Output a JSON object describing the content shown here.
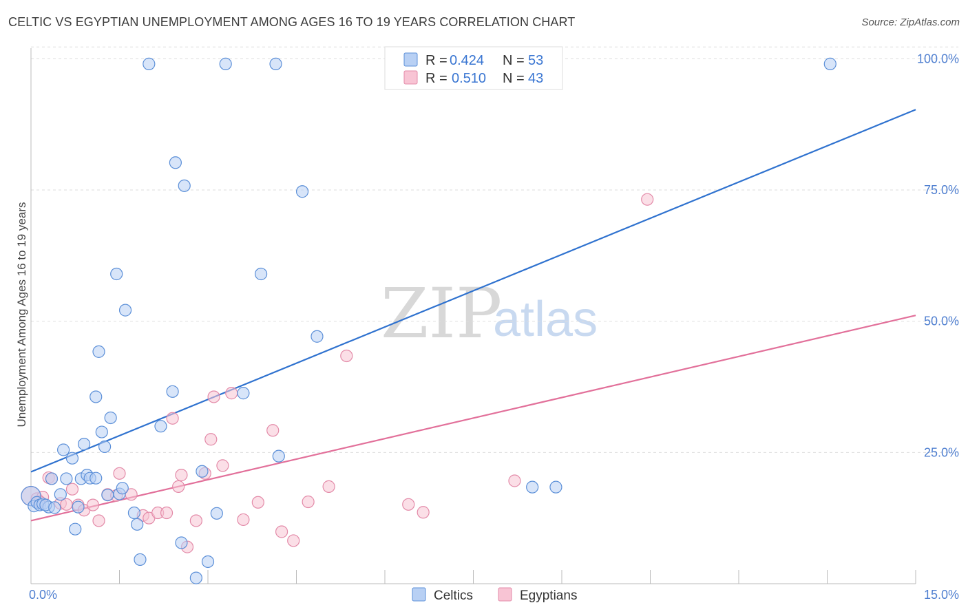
{
  "title": "CELTIC VS EGYPTIAN UNEMPLOYMENT AMONG AGES 16 TO 19 YEARS CORRELATION CHART",
  "source": "Source: ZipAtlas.com",
  "watermark": {
    "zip": "ZIP",
    "atlas": "atlas"
  },
  "colors": {
    "celtics_fill": "#b8d0f4",
    "celtics_stroke": "#5b8fd8",
    "celtics_line": "#2f72cf",
    "egyptians_fill": "#f8c4d4",
    "egyptians_stroke": "#e38aa8",
    "egyptians_line": "#e2709a",
    "grid": "#dddddd",
    "axis": "#bbbbbb"
  },
  "legend": {
    "rows": [
      {
        "r_label": "R = ",
        "r_value": "0.424",
        "n_label": "N = ",
        "n_value": "53"
      },
      {
        "r_label": "R = ",
        "r_value": "0.510",
        "n_label": "N = ",
        "n_value": "43"
      }
    ]
  },
  "chart_data": {
    "type": "scatter",
    "title": "CELTIC VS EGYPTIAN UNEMPLOYMENT AMONG AGES 16 TO 19 YEARS CORRELATION CHART",
    "xlabel": "",
    "ylabel": "Unemployment Among Ages 16 to 19 years",
    "xlim": [
      0,
      15
    ],
    "ylim": [
      0,
      102
    ],
    "x_tick_labels": [
      "0.0%",
      "15.0%"
    ],
    "y_tick_labels": [
      "25.0%",
      "50.0%",
      "75.0%",
      "100.0%"
    ],
    "y_tick_values": [
      25,
      50,
      75,
      100
    ],
    "grid": true,
    "legend_position": "top-center",
    "series": [
      {
        "name": "Celtics",
        "R": 0.424,
        "N": 53,
        "trend": {
          "x": [
            0,
            15
          ],
          "y": [
            21.3,
            90.3
          ]
        },
        "points": [
          [
            0.0,
            16.7
          ],
          [
            0.05,
            14.8
          ],
          [
            0.1,
            15.5
          ],
          [
            0.15,
            15.0
          ],
          [
            0.2,
            15.2
          ],
          [
            0.3,
            14.6
          ],
          [
            0.35,
            20.0
          ],
          [
            0.5,
            17.0
          ],
          [
            0.55,
            25.5
          ],
          [
            0.6,
            20.0
          ],
          [
            0.7,
            23.9
          ],
          [
            0.75,
            10.4
          ],
          [
            0.8,
            14.6
          ],
          [
            0.85,
            20.0
          ],
          [
            0.9,
            26.6
          ],
          [
            0.95,
            20.7
          ],
          [
            1.0,
            20.1
          ],
          [
            1.1,
            35.6
          ],
          [
            1.1,
            20.1
          ],
          [
            1.15,
            44.2
          ],
          [
            1.2,
            28.9
          ],
          [
            1.25,
            26.1
          ],
          [
            1.3,
            16.9
          ],
          [
            1.35,
            31.6
          ],
          [
            1.45,
            59.0
          ],
          [
            1.5,
            17.1
          ],
          [
            1.55,
            18.2
          ],
          [
            1.6,
            52.1
          ],
          [
            1.75,
            13.5
          ],
          [
            1.8,
            11.3
          ],
          [
            1.85,
            4.6
          ],
          [
            2.0,
            99.0
          ],
          [
            2.2,
            30.0
          ],
          [
            2.4,
            36.6
          ],
          [
            2.45,
            80.2
          ],
          [
            2.55,
            7.8
          ],
          [
            2.6,
            75.8
          ],
          [
            2.8,
            1.1
          ],
          [
            2.9,
            21.4
          ],
          [
            3.0,
            4.2
          ],
          [
            3.15,
            13.4
          ],
          [
            3.3,
            99.0
          ],
          [
            3.6,
            36.3
          ],
          [
            3.9,
            59.0
          ],
          [
            4.15,
            99.0
          ],
          [
            4.2,
            24.3
          ],
          [
            4.6,
            74.7
          ],
          [
            4.85,
            47.1
          ],
          [
            8.5,
            18.4
          ],
          [
            8.9,
            18.4
          ],
          [
            13.55,
            99.0
          ],
          [
            0.25,
            15.0
          ],
          [
            0.4,
            14.5
          ]
        ]
      },
      {
        "name": "Egyptians",
        "R": 0.51,
        "N": 43,
        "trend": {
          "x": [
            0,
            15
          ],
          "y": [
            12.0,
            51.1
          ]
        },
        "points": [
          [
            0.0,
            16.7
          ],
          [
            0.1,
            16.2
          ],
          [
            0.2,
            16.5
          ],
          [
            0.3,
            20.2
          ],
          [
            0.35,
            20.0
          ],
          [
            0.5,
            15.3
          ],
          [
            0.6,
            15.1
          ],
          [
            0.7,
            18.0
          ],
          [
            0.8,
            15.0
          ],
          [
            0.9,
            14.0
          ],
          [
            1.05,
            15.0
          ],
          [
            1.15,
            12.0
          ],
          [
            1.3,
            17.0
          ],
          [
            1.45,
            16.8
          ],
          [
            1.5,
            21.0
          ],
          [
            1.7,
            17.0
          ],
          [
            1.9,
            13.0
          ],
          [
            2.0,
            12.5
          ],
          [
            2.15,
            13.5
          ],
          [
            2.3,
            13.5
          ],
          [
            2.4,
            31.5
          ],
          [
            2.5,
            18.5
          ],
          [
            2.55,
            20.7
          ],
          [
            2.65,
            7.0
          ],
          [
            2.8,
            12.0
          ],
          [
            2.95,
            21.0
          ],
          [
            3.05,
            27.5
          ],
          [
            3.1,
            35.6
          ],
          [
            3.25,
            22.5
          ],
          [
            3.4,
            36.3
          ],
          [
            3.6,
            12.2
          ],
          [
            3.85,
            15.5
          ],
          [
            4.1,
            29.2
          ],
          [
            4.25,
            9.9
          ],
          [
            4.45,
            8.2
          ],
          [
            4.7,
            15.6
          ],
          [
            5.05,
            18.5
          ],
          [
            5.35,
            43.4
          ],
          [
            6.4,
            15.1
          ],
          [
            6.65,
            13.6
          ],
          [
            8.2,
            19.6
          ],
          [
            10.45,
            73.2
          ],
          [
            0.15,
            15.6
          ]
        ]
      }
    ]
  }
}
